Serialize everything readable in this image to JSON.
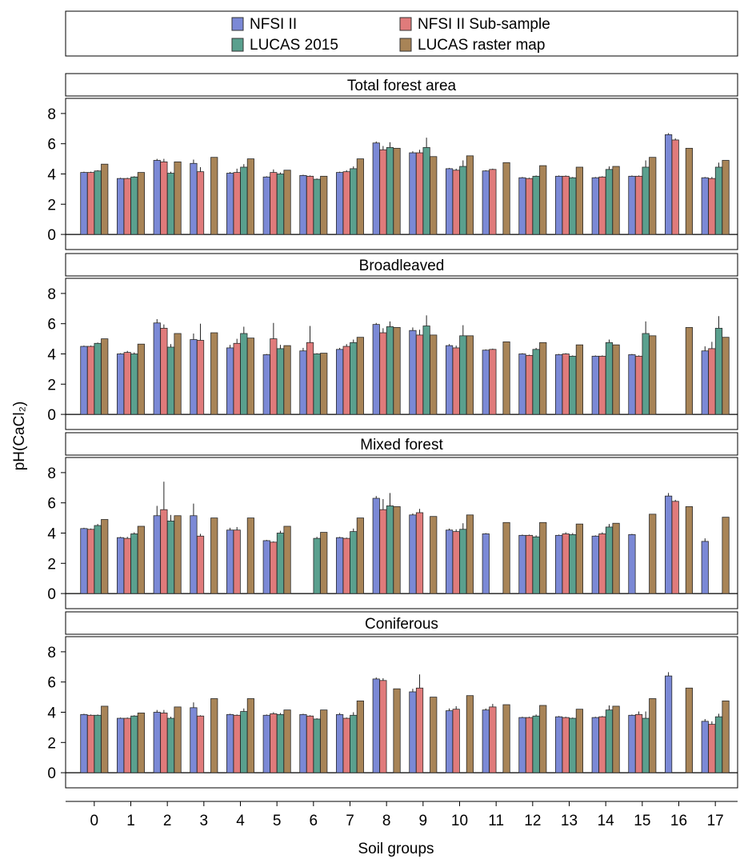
{
  "chart_data": {
    "type": "bar",
    "ylabel": "pH(CaCl₂)",
    "xlabel": "Soil groups",
    "ylim": [
      -1,
      9
    ],
    "yticks": [
      0,
      2,
      4,
      6,
      8
    ],
    "grid": false,
    "legend_position": "top",
    "categories": [
      "0",
      "1",
      "2",
      "3",
      "4",
      "5",
      "6",
      "7",
      "8",
      "9",
      "10",
      "11",
      "12",
      "13",
      "14",
      "15",
      "16",
      "17"
    ],
    "series_meta": [
      {
        "name": "NFSI II",
        "color": "#7b89d6"
      },
      {
        "name": "NFSI II Sub-sample",
        "color": "#e07b7b"
      },
      {
        "name": "LUCAS 2015",
        "color": "#5aa08e"
      },
      {
        "name": "LUCAS raster map",
        "color": "#a88457"
      }
    ],
    "panels": [
      {
        "title": "Total forest area",
        "values": [
          [
            4.1,
            3.7,
            4.9,
            4.7,
            4.05,
            3.8,
            3.9,
            4.1,
            6.05,
            5.4,
            4.35,
            4.2,
            3.75,
            3.85,
            3.75,
            3.85,
            6.6,
            3.75
          ],
          [
            4.1,
            3.7,
            4.8,
            4.15,
            4.1,
            4.1,
            3.85,
            4.15,
            5.6,
            5.4,
            4.25,
            4.3,
            3.7,
            3.85,
            3.8,
            3.85,
            6.25,
            3.7
          ],
          [
            4.2,
            3.8,
            4.05,
            null,
            4.45,
            4.0,
            3.65,
            4.35,
            5.75,
            5.75,
            4.5,
            null,
            3.85,
            3.75,
            4.3,
            4.45,
            null,
            4.45
          ],
          [
            4.65,
            4.1,
            4.8,
            5.1,
            5.0,
            4.25,
            3.85,
            5.0,
            5.7,
            5.15,
            5.2,
            4.75,
            4.55,
            4.45,
            4.5,
            5.1,
            5.7,
            4.9
          ]
        ],
        "errors": [
          [
            0.05,
            0.05,
            0.1,
            0.25,
            0.08,
            0.05,
            0.05,
            0.05,
            0.1,
            0.1,
            0.05,
            0.05,
            0.05,
            0.05,
            0.05,
            0.05,
            0.1,
            0.05
          ],
          [
            0.05,
            0.05,
            0.2,
            0.3,
            0.25,
            0.2,
            0.05,
            0.1,
            0.25,
            0.2,
            0.1,
            0.05,
            0.05,
            0.05,
            0.05,
            0.05,
            0.1,
            0.1
          ],
          [
            0.05,
            0.05,
            0.1,
            null,
            0.2,
            0.1,
            0.05,
            0.15,
            0.35,
            0.65,
            0.4,
            null,
            0.05,
            0.05,
            0.2,
            0.45,
            null,
            0.3
          ],
          [
            0,
            0,
            0,
            0,
            0,
            0,
            0,
            0,
            0,
            0,
            0,
            0,
            0,
            0,
            0,
            0,
            0,
            0
          ]
        ]
      },
      {
        "title": "Broadleaved",
        "values": [
          [
            4.5,
            4.0,
            6.05,
            4.95,
            4.4,
            3.95,
            4.2,
            4.3,
            5.95,
            5.55,
            4.55,
            4.25,
            4.0,
            3.95,
            3.85,
            3.95,
            null,
            4.2
          ],
          [
            4.5,
            4.1,
            5.7,
            4.9,
            4.7,
            5.0,
            4.75,
            4.5,
            5.4,
            5.25,
            4.4,
            4.3,
            3.9,
            4.0,
            3.85,
            3.85,
            null,
            4.35
          ],
          [
            4.7,
            4.0,
            4.45,
            null,
            5.35,
            4.35,
            4.0,
            4.75,
            5.8,
            5.85,
            5.2,
            null,
            4.3,
            3.85,
            4.75,
            5.35,
            null,
            5.7
          ],
          [
            5.0,
            4.65,
            5.35,
            5.4,
            5.05,
            4.55,
            4.05,
            5.1,
            5.75,
            5.25,
            5.2,
            4.8,
            4.75,
            4.6,
            4.6,
            5.2,
            5.75,
            5.1
          ]
        ],
        "errors": [
          [
            0.05,
            0.05,
            0.25,
            0.4,
            0.2,
            0.05,
            0.2,
            0.1,
            0.1,
            0.2,
            0.1,
            0.05,
            0.05,
            0.05,
            0.05,
            0.05,
            null,
            0.3
          ],
          [
            0.05,
            0.1,
            0.25,
            1.1,
            0.3,
            1.05,
            1.1,
            0.15,
            0.3,
            0.35,
            0.15,
            0.05,
            0.05,
            0.05,
            0.05,
            0.05,
            null,
            0.45
          ],
          [
            0.05,
            0.1,
            0.2,
            null,
            0.45,
            0.25,
            0.05,
            0.2,
            0.35,
            0.7,
            0.7,
            null,
            0.1,
            0.05,
            0.2,
            0.8,
            null,
            0.8
          ],
          [
            0,
            0,
            0,
            0,
            0,
            0,
            0,
            0,
            0,
            0,
            0,
            0,
            0,
            0,
            0,
            0,
            0,
            0
          ]
        ]
      },
      {
        "title": "Mixed forest",
        "values": [
          [
            4.3,
            3.7,
            5.15,
            5.15,
            4.2,
            3.5,
            null,
            3.7,
            6.3,
            5.2,
            4.2,
            3.95,
            3.85,
            3.85,
            3.8,
            3.9,
            6.45,
            3.45
          ],
          [
            4.25,
            3.65,
            5.55,
            3.8,
            4.2,
            3.4,
            null,
            3.65,
            5.55,
            5.35,
            4.1,
            null,
            3.85,
            3.95,
            3.95,
            null,
            6.1,
            null
          ],
          [
            4.5,
            3.95,
            4.8,
            null,
            null,
            4.0,
            3.65,
            4.1,
            5.8,
            null,
            4.25,
            null,
            3.75,
            3.9,
            4.4,
            null,
            null,
            null
          ],
          [
            4.9,
            4.45,
            5.15,
            5.0,
            5.0,
            4.45,
            4.05,
            5.0,
            5.75,
            5.1,
            5.2,
            4.7,
            4.7,
            4.6,
            4.65,
            5.25,
            5.75,
            5.05
          ]
        ],
        "errors": [
          [
            0.05,
            0.05,
            0.65,
            0.8,
            0.15,
            0.05,
            null,
            0.05,
            0.15,
            0.1,
            0.1,
            0.05,
            0.05,
            0.05,
            0.05,
            0.05,
            0.2,
            0.2
          ],
          [
            0.05,
            0.1,
            1.85,
            0.15,
            0.2,
            0.05,
            null,
            0.05,
            0.7,
            0.25,
            0.15,
            null,
            0.05,
            0.1,
            0.1,
            null,
            0.1,
            null
          ],
          [
            0.1,
            0.1,
            0.4,
            null,
            null,
            0.15,
            0.1,
            0.2,
            0.85,
            null,
            0.4,
            null,
            0.1,
            0.1,
            0.2,
            null,
            null,
            null
          ],
          [
            0,
            0,
            0,
            0,
            0,
            0,
            0,
            0,
            0,
            0,
            0,
            0,
            0,
            0,
            0,
            0,
            0,
            0
          ]
        ]
      },
      {
        "title": "Coniferous",
        "values": [
          [
            3.85,
            3.6,
            4.0,
            4.3,
            3.85,
            3.8,
            3.85,
            3.85,
            6.2,
            5.35,
            4.1,
            4.15,
            3.65,
            3.7,
            3.65,
            3.8,
            6.4,
            3.4
          ],
          [
            3.8,
            3.6,
            3.95,
            3.75,
            3.8,
            3.9,
            3.75,
            3.6,
            6.1,
            5.6,
            4.2,
            4.35,
            3.65,
            3.65,
            3.7,
            3.85,
            null,
            3.2
          ],
          [
            3.8,
            3.75,
            3.6,
            null,
            4.05,
            3.85,
            3.55,
            3.8,
            null,
            null,
            null,
            null,
            3.75,
            3.6,
            4.15,
            3.6,
            null,
            3.7
          ],
          [
            4.4,
            3.95,
            4.35,
            4.9,
            4.9,
            4.15,
            4.15,
            4.75,
            5.55,
            5.0,
            5.1,
            4.5,
            4.45,
            4.2,
            4.4,
            4.9,
            5.6,
            4.75
          ]
        ],
        "errors": [
          [
            0.05,
            0.05,
            0.15,
            0.35,
            0.05,
            0.05,
            0.05,
            0.1,
            0.1,
            0.2,
            0.15,
            0.1,
            0.05,
            0.05,
            0.05,
            0.05,
            0.25,
            0.15
          ],
          [
            0.05,
            0.05,
            0.2,
            0.05,
            0.05,
            0.1,
            0.05,
            0.05,
            0.15,
            0.9,
            0.2,
            0.2,
            0.05,
            0.05,
            0.05,
            0.2,
            null,
            0.2
          ],
          [
            0.05,
            0.05,
            0.1,
            null,
            0.2,
            0.1,
            0.05,
            0.2,
            null,
            null,
            null,
            null,
            0.1,
            0.05,
            0.3,
            0.45,
            null,
            0.2
          ],
          [
            0,
            0,
            0,
            0,
            0,
            0,
            0,
            0,
            0,
            0,
            0,
            0,
            0,
            0,
            0,
            0,
            0,
            0
          ]
        ]
      }
    ]
  }
}
